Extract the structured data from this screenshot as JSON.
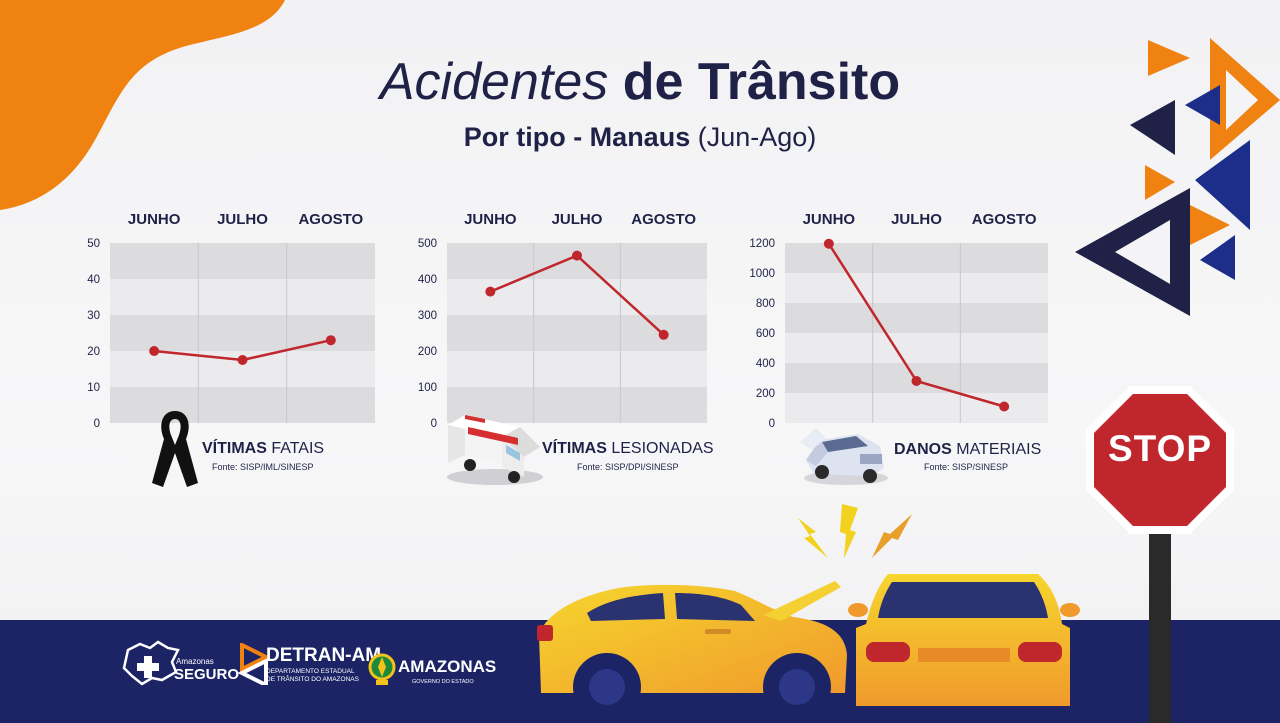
{
  "header": {
    "title_italic": "Acidentes",
    "title_bold": "de Trânsito",
    "subtitle_bold": "Por tipo - Manaus",
    "subtitle_rest": "(Jun-Ago)"
  },
  "chart_data": [
    {
      "type": "line",
      "categories": [
        "JUNHO",
        "JULHO",
        "AGOSTO"
      ],
      "values": [
        20,
        17.5,
        23
      ],
      "ylim": [
        0,
        50
      ],
      "yticks": [
        "0",
        "10",
        "20",
        "30",
        "40",
        "50"
      ],
      "caption_bold": "VÍTIMAS",
      "caption_rest": "FATAIS",
      "source": "Fonte: SISP/IML/SINESP",
      "line_color": "#c0272d"
    },
    {
      "type": "line",
      "categories": [
        "JUNHO",
        "JULHO",
        "AGOSTO"
      ],
      "values": [
        365,
        465,
        245
      ],
      "ylim": [
        0,
        500
      ],
      "yticks": [
        "0",
        "100",
        "200",
        "300",
        "400",
        "500"
      ],
      "caption_bold": "VÍTIMAS",
      "caption_rest": "LESIONADAS",
      "source": "Fonte: SISP/DPI/SINESP",
      "line_color": "#c0272d"
    },
    {
      "type": "line",
      "categories": [
        "JUNHO",
        "JULHO",
        "AGOSTO"
      ],
      "values": [
        1195,
        280,
        110
      ],
      "ylim": [
        0,
        1200
      ],
      "yticks": [
        "0",
        "200",
        "400",
        "600",
        "800",
        "1000",
        "1200"
      ],
      "caption_bold": "DANOS",
      "caption_rest": "MATERIAIS",
      "source": "Fonte: SISP/SINESP",
      "line_color": "#c0272d"
    }
  ],
  "footer": {
    "logo1_small": "Amazonas",
    "logo1_big": "SEGURO",
    "logo2_big": "DETRAN-AM",
    "logo2_line1": "DEPARTAMENTO ESTADUAL",
    "logo2_line2": "DE TRÂNSITO DO AMAZONAS",
    "logo3_big": "AMAZONAS",
    "logo3_small": "GOVERNO DO ESTADO"
  },
  "stop_sign": {
    "text": "STOP"
  },
  "colors": {
    "navy": "#1f2147",
    "orange": "#f08212",
    "red": "#c0272d",
    "band": "#1c2466"
  }
}
